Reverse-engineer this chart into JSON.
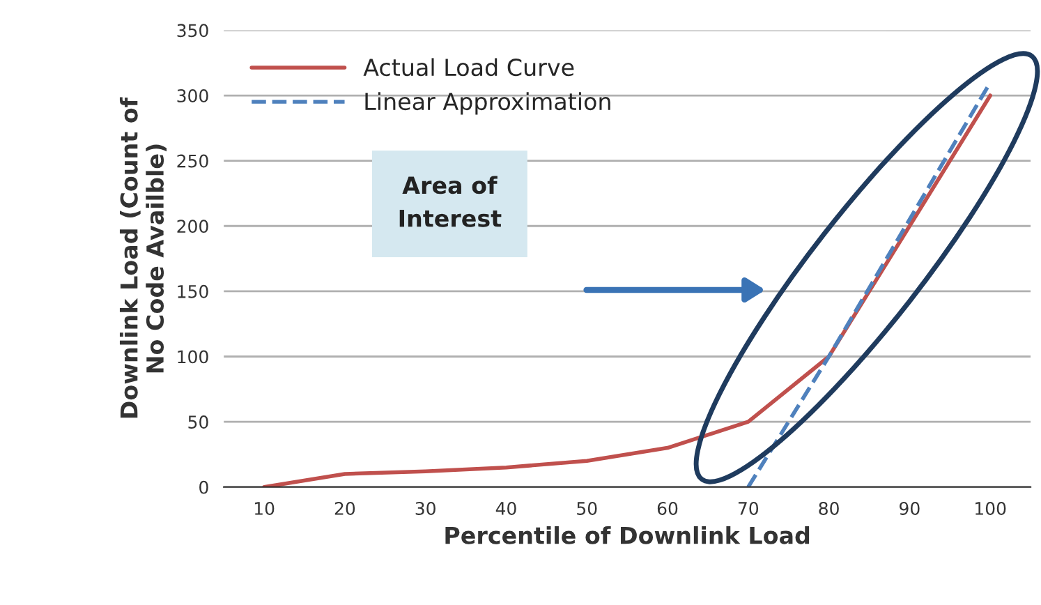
{
  "chart_data": {
    "type": "line",
    "xlabel": "Percentile of Downlink Load",
    "ylabel": "Downlink Load (Count of\nNo Code Availble)",
    "categories": [
      "10",
      "20",
      "30",
      "40",
      "50",
      "60",
      "70",
      "80",
      "90",
      "100"
    ],
    "series": [
      {
        "name": "Actual Load Curve",
        "color": "#c0504d",
        "line_style": "solid",
        "values": [
          0,
          10,
          12,
          15,
          20,
          30,
          50,
          100,
          200,
          300
        ]
      },
      {
        "name": "Linear Approximation",
        "color": "#4f81bd",
        "line_style": "dashed",
        "values": [
          null,
          null,
          null,
          null,
          null,
          null,
          0,
          100,
          205,
          310
        ]
      }
    ],
    "ylim": [
      0,
      350
    ],
    "yticks": [
      0,
      50,
      100,
      150,
      200,
      250,
      300,
      350
    ],
    "grid": "y",
    "legend": "top left",
    "annotations": [
      "Area of\nInterest"
    ]
  }
}
